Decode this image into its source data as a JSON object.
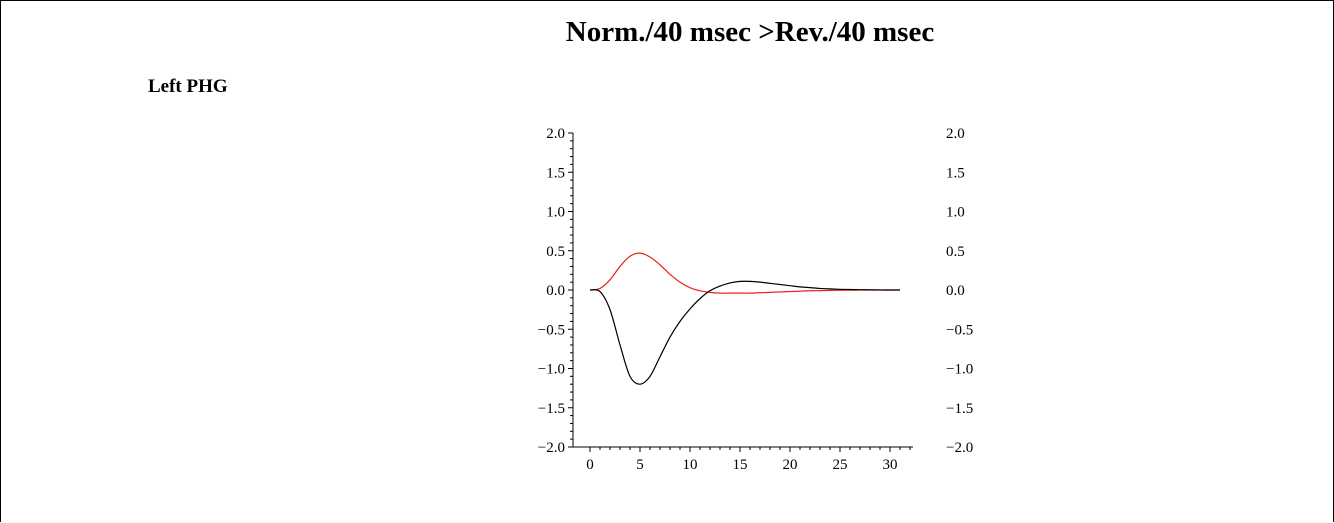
{
  "chart_data": {
    "type": "line",
    "title": "Norm./40 msec >Rev./40 msec",
    "panel_label": "Left PHG",
    "xlabel": "",
    "ylabel": "",
    "xlim": [
      0,
      32
    ],
    "ylim": [
      -2.0,
      2.0
    ],
    "x_ticks": [
      "0",
      "5",
      "10",
      "15",
      "20",
      "25",
      "30"
    ],
    "y_ticks": [
      "2.0",
      "1.5",
      "1.0",
      "0.5",
      "0.0",
      "−0.5",
      "−1.0",
      "−1.5",
      "−2.0"
    ],
    "grid": false,
    "legend": "none",
    "x": [
      0,
      1,
      2,
      3,
      4,
      5,
      6,
      7,
      8,
      9,
      10,
      11,
      12,
      13,
      14,
      15,
      16,
      17,
      18,
      19,
      20,
      21,
      22,
      23,
      24,
      25,
      26,
      27,
      28,
      29,
      30,
      31
    ],
    "series": [
      {
        "color": "#e8221b",
        "values": [
          0.0,
          0.02,
          0.13,
          0.3,
          0.43,
          0.47,
          0.42,
          0.32,
          0.2,
          0.1,
          0.03,
          -0.01,
          -0.03,
          -0.04,
          -0.04,
          -0.04,
          -0.04,
          -0.035,
          -0.03,
          -0.025,
          -0.02,
          -0.015,
          -0.01,
          -0.008,
          -0.005,
          -0.003,
          -0.002,
          -0.001,
          0.0,
          0.0,
          0.0,
          0.0
        ]
      },
      {
        "color": "#000000",
        "values": [
          0.0,
          -0.02,
          -0.25,
          -0.7,
          -1.1,
          -1.2,
          -1.1,
          -0.85,
          -0.6,
          -0.4,
          -0.24,
          -0.11,
          -0.01,
          0.05,
          0.09,
          0.11,
          0.11,
          0.1,
          0.085,
          0.07,
          0.055,
          0.04,
          0.03,
          0.02,
          0.014,
          0.009,
          0.006,
          0.004,
          0.002,
          0.001,
          0.0,
          0.0
        ]
      }
    ]
  }
}
